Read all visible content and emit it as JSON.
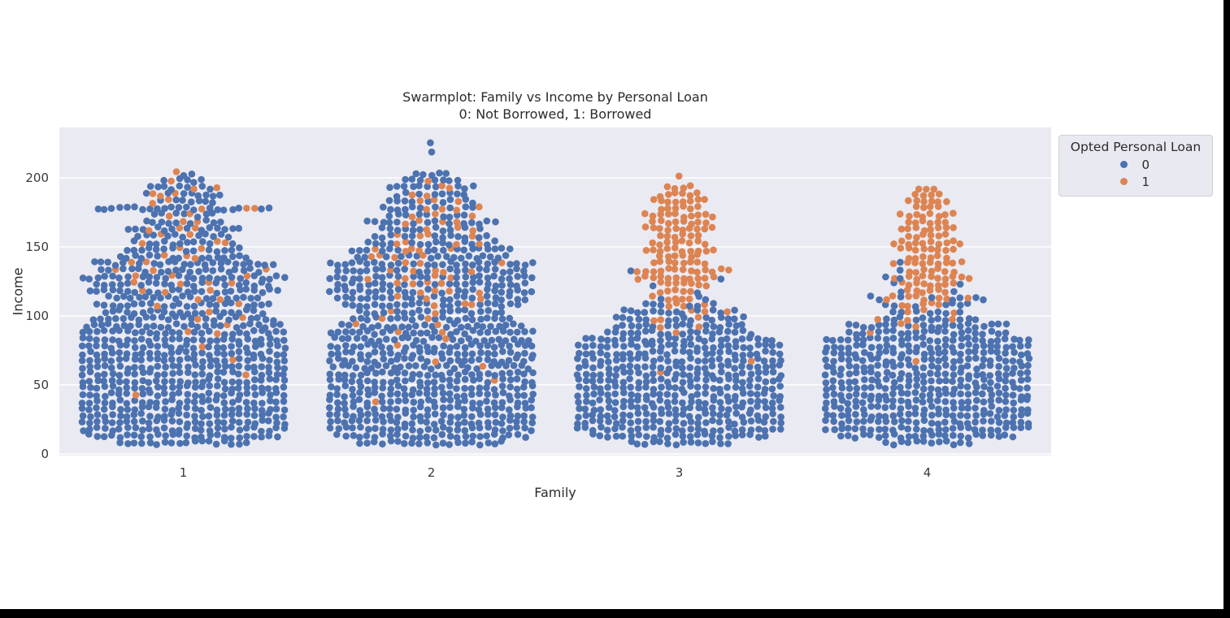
{
  "window": {
    "background": "#ffffff",
    "edge_color": "#000000"
  },
  "chart_data": {
    "type": "scatter",
    "variant": "swarmplot",
    "title": "Swarmplot: Family vs Income by Personal Loan",
    "subtitle": "0: Not Borrowed, 1: Borrowed",
    "xlabel": "Family",
    "ylabel": "Income",
    "categories": [
      "1",
      "2",
      "3",
      "4"
    ],
    "yticks": [
      0,
      50,
      100,
      150,
      200
    ],
    "ylim": [
      0,
      235
    ],
    "grid": "horizontal-white-lines",
    "legend": {
      "title": "Opted Personal Loan",
      "position": "outside-upper-right",
      "items": [
        {
          "label": "0",
          "color": "#4c72b0",
          "meaning": "Not Borrowed"
        },
        {
          "label": "1",
          "color": "#dd8452",
          "meaning": "Borrowed"
        }
      ]
    },
    "colors": {
      "loan_0": "#4c72b0",
      "loan_1": "#dd8452",
      "axes_bg": "#eaeaf2",
      "grid": "#ffffff",
      "text": "#2b2b2b"
    },
    "rows_format": "each row = [income, total_points, points_with_loan_1] (aggregated swarm densities read from plot)",
    "families": [
      {
        "category": "1",
        "rows": [
          [
            8,
            18,
            0
          ],
          [
            13,
            26,
            0
          ],
          [
            18,
            28,
            0
          ],
          [
            23,
            28,
            0
          ],
          [
            28,
            28,
            0
          ],
          [
            33,
            28,
            0
          ],
          [
            38,
            28,
            0
          ],
          [
            43,
            28,
            1
          ],
          [
            48,
            28,
            0
          ],
          [
            53,
            28,
            0
          ],
          [
            58,
            28,
            1
          ],
          [
            63,
            28,
            0
          ],
          [
            68,
            28,
            1
          ],
          [
            73,
            28,
            0
          ],
          [
            78,
            28,
            1
          ],
          [
            83,
            28,
            0
          ],
          [
            88,
            28,
            2
          ],
          [
            93,
            27,
            1
          ],
          [
            98,
            25,
            2
          ],
          [
            103,
            22,
            1
          ],
          [
            108,
            24,
            2
          ],
          [
            113,
            21,
            2
          ],
          [
            118,
            26,
            3
          ],
          [
            123,
            24,
            4
          ],
          [
            128,
            28,
            3
          ],
          [
            133,
            23,
            3
          ],
          [
            138,
            25,
            2
          ],
          [
            143,
            18,
            3
          ],
          [
            148,
            16,
            2
          ],
          [
            153,
            14,
            3
          ],
          [
            158,
            13,
            2
          ],
          [
            163,
            16,
            3
          ],
          [
            168,
            11,
            2
          ],
          [
            173,
            9,
            2
          ],
          [
            178,
            24,
            3
          ],
          [
            183,
            9,
            2
          ],
          [
            188,
            11,
            3
          ],
          [
            193,
            10,
            2
          ],
          [
            198,
            6,
            1
          ],
          [
            203,
            3,
            1
          ]
        ]
      },
      {
        "category": "2",
        "rows": [
          [
            8,
            20,
            0
          ],
          [
            13,
            26,
            0
          ],
          [
            18,
            28,
            0
          ],
          [
            23,
            28,
            0
          ],
          [
            28,
            28,
            0
          ],
          [
            33,
            28,
            0
          ],
          [
            38,
            28,
            1
          ],
          [
            43,
            28,
            0
          ],
          [
            48,
            28,
            0
          ],
          [
            53,
            28,
            1
          ],
          [
            58,
            28,
            0
          ],
          [
            63,
            27,
            1
          ],
          [
            68,
            28,
            1
          ],
          [
            73,
            28,
            0
          ],
          [
            78,
            28,
            1
          ],
          [
            83,
            27,
            1
          ],
          [
            88,
            28,
            2
          ],
          [
            93,
            25,
            2
          ],
          [
            98,
            22,
            2
          ],
          [
            103,
            20,
            2
          ],
          [
            108,
            24,
            3
          ],
          [
            113,
            26,
            3
          ],
          [
            118,
            28,
            4
          ],
          [
            123,
            26,
            4
          ],
          [
            128,
            28,
            4
          ],
          [
            133,
            26,
            5
          ],
          [
            138,
            28,
            3
          ],
          [
            143,
            21,
            4
          ],
          [
            148,
            22,
            5
          ],
          [
            153,
            18,
            4
          ],
          [
            158,
            16,
            4
          ],
          [
            163,
            14,
            3
          ],
          [
            168,
            18,
            4
          ],
          [
            173,
            12,
            3
          ],
          [
            178,
            14,
            4
          ],
          [
            183,
            12,
            3
          ],
          [
            188,
            10,
            2
          ],
          [
            193,
            12,
            2
          ],
          [
            198,
            8,
            1
          ],
          [
            203,
            5,
            0
          ],
          [
            218,
            1,
            0
          ],
          [
            224,
            1,
            0
          ]
        ]
      },
      {
        "category": "3",
        "rows": [
          [
            8,
            14,
            0
          ],
          [
            13,
            24,
            0
          ],
          [
            18,
            28,
            0
          ],
          [
            23,
            28,
            0
          ],
          [
            28,
            28,
            0
          ],
          [
            33,
            28,
            0
          ],
          [
            38,
            28,
            0
          ],
          [
            43,
            28,
            0
          ],
          [
            48,
            28,
            0
          ],
          [
            53,
            28,
            0
          ],
          [
            58,
            28,
            1
          ],
          [
            63,
            28,
            0
          ],
          [
            68,
            28,
            1
          ],
          [
            73,
            28,
            0
          ],
          [
            78,
            28,
            0
          ],
          [
            83,
            26,
            0
          ],
          [
            88,
            20,
            1
          ],
          [
            93,
            18,
            2
          ],
          [
            98,
            18,
            3
          ],
          [
            103,
            16,
            3
          ],
          [
            108,
            10,
            4
          ],
          [
            113,
            8,
            5
          ],
          [
            118,
            6,
            5
          ],
          [
            123,
            8,
            7
          ],
          [
            128,
            12,
            11
          ],
          [
            133,
            14,
            13
          ],
          [
            138,
            8,
            8
          ],
          [
            143,
            6,
            6
          ],
          [
            148,
            10,
            10
          ],
          [
            153,
            8,
            8
          ],
          [
            158,
            6,
            6
          ],
          [
            163,
            10,
            10
          ],
          [
            168,
            8,
            8
          ],
          [
            173,
            10,
            10
          ],
          [
            178,
            6,
            6
          ],
          [
            183,
            8,
            8
          ],
          [
            188,
            6,
            6
          ],
          [
            193,
            4,
            4
          ],
          [
            200,
            1,
            1
          ]
        ]
      },
      {
        "category": "4",
        "rows": [
          [
            8,
            12,
            0
          ],
          [
            13,
            24,
            0
          ],
          [
            18,
            28,
            0
          ],
          [
            23,
            28,
            0
          ],
          [
            28,
            28,
            0
          ],
          [
            33,
            28,
            0
          ],
          [
            38,
            28,
            0
          ],
          [
            43,
            28,
            0
          ],
          [
            48,
            28,
            0
          ],
          [
            53,
            28,
            0
          ],
          [
            58,
            28,
            0
          ],
          [
            63,
            28,
            0
          ],
          [
            68,
            28,
            1
          ],
          [
            73,
            28,
            0
          ],
          [
            78,
            28,
            0
          ],
          [
            83,
            28,
            0
          ],
          [
            88,
            22,
            1
          ],
          [
            93,
            22,
            2
          ],
          [
            98,
            14,
            3
          ],
          [
            103,
            10,
            3
          ],
          [
            108,
            12,
            5
          ],
          [
            113,
            16,
            8
          ],
          [
            118,
            8,
            6
          ],
          [
            123,
            10,
            8
          ],
          [
            128,
            12,
            10
          ],
          [
            133,
            8,
            7
          ],
          [
            138,
            10,
            9
          ],
          [
            143,
            6,
            6
          ],
          [
            148,
            8,
            8
          ],
          [
            153,
            10,
            10
          ],
          [
            158,
            6,
            6
          ],
          [
            163,
            8,
            8
          ],
          [
            168,
            6,
            6
          ],
          [
            173,
            8,
            8
          ],
          [
            178,
            4,
            4
          ],
          [
            183,
            6,
            6
          ],
          [
            188,
            4,
            4
          ],
          [
            193,
            3,
            3
          ]
        ]
      }
    ]
  }
}
